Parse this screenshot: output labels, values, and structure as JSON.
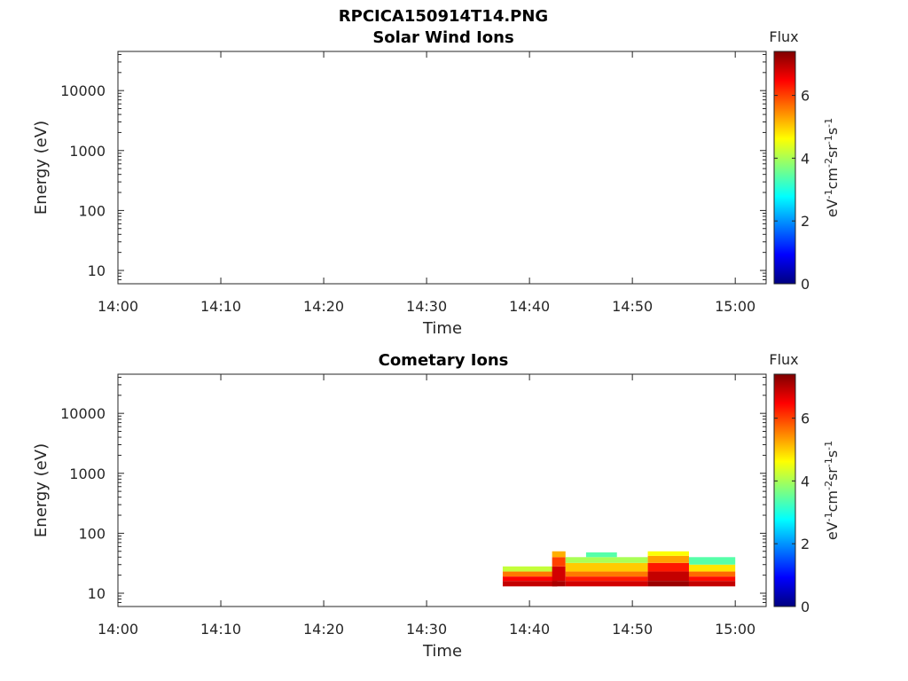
{
  "figure_title": "RPCICA150914T14.PNG",
  "colors": {
    "axis": "#262626",
    "background": "#ffffff",
    "colormap": [
      "#00007f",
      "#0000ff",
      "#007fff",
      "#00ffff",
      "#7fff7f",
      "#ffff00",
      "#ff7f00",
      "#ff0000",
      "#7f0000"
    ]
  },
  "chart_data": [
    {
      "type": "heatmap",
      "title": "Solar Wind Ions",
      "xlabel": "Time",
      "ylabel": "Energy (eV)",
      "x_ticks": [
        "14:00",
        "14:10",
        "14:20",
        "14:30",
        "14:40",
        "14:50",
        "15:00"
      ],
      "xlim_minutes_after_14_00": [
        0,
        63
      ],
      "y_scale": "log",
      "y_ticks": [
        "10",
        "100",
        "1000",
        "10000"
      ],
      "ylim": [
        6,
        45000
      ],
      "colorbar": {
        "title": "Flux",
        "label": "eV-1cm-2sr-1s-1",
        "ticks": [
          "0",
          "2",
          "4",
          "6"
        ],
        "range": [
          0,
          7.4
        ]
      },
      "cells": []
    },
    {
      "type": "heatmap",
      "title": "Cometary Ions",
      "xlabel": "Time",
      "ylabel": "Energy (eV)",
      "x_ticks": [
        "14:00",
        "14:10",
        "14:20",
        "14:30",
        "14:40",
        "14:50",
        "15:00"
      ],
      "xlim_minutes_after_14_00": [
        0,
        63
      ],
      "y_scale": "log",
      "y_ticks": [
        "10",
        "100",
        "1000",
        "10000"
      ],
      "ylim": [
        6,
        45000
      ],
      "colorbar": {
        "title": "Flux",
        "label": "eV-1cm-2sr-1s-1",
        "ticks": [
          "0",
          "2",
          "4",
          "6"
        ],
        "range": [
          0,
          7.4
        ]
      },
      "cells": [
        {
          "t0": 37.4,
          "t1": 42.7,
          "e0": 13,
          "e1": 16,
          "flux": 6.9
        },
        {
          "t0": 37.4,
          "t1": 42.7,
          "e0": 16,
          "e1": 19,
          "flux": 6.5
        },
        {
          "t0": 37.4,
          "t1": 42.7,
          "e0": 19,
          "e1": 23,
          "flux": 5.6
        },
        {
          "t0": 37.4,
          "t1": 42.7,
          "e0": 23,
          "e1": 28,
          "flux": 4.2
        },
        {
          "t0": 42.2,
          "t1": 43.5,
          "e0": 13,
          "e1": 16,
          "flux": 7.1
        },
        {
          "t0": 42.2,
          "t1": 43.5,
          "e0": 16,
          "e1": 28,
          "flux": 6.8
        },
        {
          "t0": 42.2,
          "t1": 43.5,
          "e0": 28,
          "e1": 40,
          "flux": 6.0
        },
        {
          "t0": 42.2,
          "t1": 43.5,
          "e0": 40,
          "e1": 50,
          "flux": 5.2
        },
        {
          "t0": 43.5,
          "t1": 51.5,
          "e0": 13,
          "e1": 16,
          "flux": 6.8
        },
        {
          "t0": 43.5,
          "t1": 51.5,
          "e0": 16,
          "e1": 19,
          "flux": 6.3
        },
        {
          "t0": 43.5,
          "t1": 51.5,
          "e0": 19,
          "e1": 23,
          "flux": 5.6
        },
        {
          "t0": 43.5,
          "t1": 51.5,
          "e0": 23,
          "e1": 32,
          "flux": 5.0
        },
        {
          "t0": 43.5,
          "t1": 51.5,
          "e0": 32,
          "e1": 40,
          "flux": 4.0
        },
        {
          "t0": 45.5,
          "t1": 48.5,
          "e0": 40,
          "e1": 48,
          "flux": 3.4
        },
        {
          "t0": 51.5,
          "t1": 55.5,
          "e0": 13,
          "e1": 16,
          "flux": 7.2
        },
        {
          "t0": 51.5,
          "t1": 55.5,
          "e0": 16,
          "e1": 23,
          "flux": 6.9
        },
        {
          "t0": 51.5,
          "t1": 55.5,
          "e0": 23,
          "e1": 32,
          "flux": 6.3
        },
        {
          "t0": 51.5,
          "t1": 55.5,
          "e0": 32,
          "e1": 42,
          "flux": 5.3
        },
        {
          "t0": 51.5,
          "t1": 55.5,
          "e0": 42,
          "e1": 50,
          "flux": 4.6
        },
        {
          "t0": 55.5,
          "t1": 60.0,
          "e0": 13,
          "e1": 16,
          "flux": 6.9
        },
        {
          "t0": 55.5,
          "t1": 60.0,
          "e0": 16,
          "e1": 19,
          "flux": 6.4
        },
        {
          "t0": 55.5,
          "t1": 60.0,
          "e0": 19,
          "e1": 23,
          "flux": 5.7
        },
        {
          "t0": 55.5,
          "t1": 60.0,
          "e0": 23,
          "e1": 30,
          "flux": 4.8
        },
        {
          "t0": 55.5,
          "t1": 60.0,
          "e0": 30,
          "e1": 40,
          "flux": 3.4
        }
      ]
    }
  ]
}
